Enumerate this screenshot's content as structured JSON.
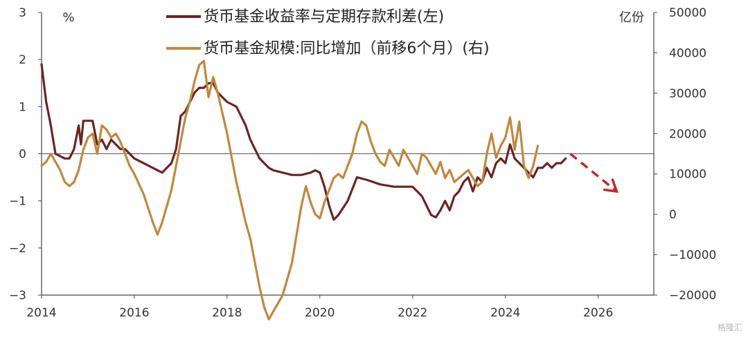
{
  "chart_data": {
    "type": "line",
    "left_unit": "%",
    "right_unit": "亿份",
    "left_axis": {
      "ylim": [
        -3,
        3
      ],
      "ticks": [
        "3",
        "2",
        "1",
        "0",
        "−1",
        "−2",
        "−3"
      ]
    },
    "right_axis": {
      "ylim": [
        -20000,
        50000
      ],
      "ticks": [
        "50000",
        "40000",
        "30000",
        "20000",
        "10000",
        "0",
        "−10000",
        "−20000"
      ]
    },
    "x_axis": {
      "range": [
        2014,
        2027.2
      ],
      "ticks": [
        "2014",
        "2016",
        "2018",
        "2020",
        "2022",
        "2024",
        "2026"
      ]
    },
    "legend": {
      "position": "top-center"
    },
    "series": [
      {
        "name": "货币基金收益率与定期存款利差(左)",
        "axis": "left",
        "color": "#6b2424",
        "x": [
          2014.0,
          2014.1,
          2014.2,
          2014.3,
          2014.4,
          2014.5,
          2014.6,
          2014.7,
          2014.8,
          2014.85,
          2014.9,
          2015.0,
          2015.1,
          2015.2,
          2015.3,
          2015.4,
          2015.5,
          2015.6,
          2015.7,
          2015.8,
          2015.9,
          2016.0,
          2016.2,
          2016.4,
          2016.6,
          2016.8,
          2016.9,
          2017.0,
          2017.1,
          2017.2,
          2017.3,
          2017.4,
          2017.5,
          2017.6,
          2017.7,
          2017.8,
          2017.9,
          2018.0,
          2018.2,
          2018.4,
          2018.5,
          2018.6,
          2018.7,
          2018.8,
          2018.9,
          2019.0,
          2019.2,
          2019.4,
          2019.6,
          2019.8,
          2019.9,
          2020.0,
          2020.1,
          2020.2,
          2020.3,
          2020.4,
          2020.6,
          2020.8,
          2021.0,
          2021.3,
          2021.6,
          2021.9,
          2022.0,
          2022.2,
          2022.3,
          2022.4,
          2022.5,
          2022.6,
          2022.7,
          2022.8,
          2022.9,
          2023.0,
          2023.1,
          2023.2,
          2023.3,
          2023.4,
          2023.5,
          2023.6,
          2023.7,
          2023.8,
          2023.9,
          2024.0,
          2024.1,
          2024.2,
          2024.3,
          2024.4,
          2024.5,
          2024.6,
          2024.7,
          2024.8,
          2024.9,
          2025.0,
          2025.1,
          2025.2,
          2025.3
        ],
        "y": [
          1.9,
          1.1,
          0.6,
          0.0,
          -0.05,
          -0.1,
          -0.1,
          0.1,
          0.6,
          0.2,
          0.7,
          0.7,
          0.7,
          0.2,
          0.3,
          0.1,
          0.3,
          0.2,
          0.1,
          0.1,
          0.0,
          -0.1,
          -0.2,
          -0.3,
          -0.4,
          -0.2,
          0.1,
          0.8,
          0.9,
          1.1,
          1.3,
          1.4,
          1.4,
          1.5,
          1.5,
          1.3,
          1.2,
          1.1,
          1.0,
          0.6,
          0.3,
          0.1,
          -0.1,
          -0.2,
          -0.3,
          -0.35,
          -0.4,
          -0.45,
          -0.45,
          -0.4,
          -0.35,
          -0.4,
          -0.7,
          -1.1,
          -1.4,
          -1.3,
          -1.0,
          -0.5,
          -0.55,
          -0.65,
          -0.7,
          -0.7,
          -0.7,
          -0.9,
          -1.1,
          -1.3,
          -1.35,
          -1.2,
          -1.0,
          -1.2,
          -0.9,
          -0.8,
          -0.6,
          -0.5,
          -0.8,
          -0.5,
          -0.6,
          -0.3,
          -0.5,
          -0.2,
          -0.1,
          -0.2,
          0.2,
          -0.1,
          -0.2,
          -0.3,
          -0.4,
          -0.5,
          -0.3,
          -0.3,
          -0.2,
          -0.3,
          -0.2,
          -0.2,
          -0.1
        ]
      },
      {
        "name": "货币基金规模:同比增加（前移6个月）(右)",
        "axis": "right",
        "color": "#c0883c",
        "x": [
          2014.0,
          2014.1,
          2014.2,
          2014.3,
          2014.4,
          2014.5,
          2014.6,
          2014.7,
          2014.8,
          2014.9,
          2015.0,
          2015.1,
          2015.2,
          2015.3,
          2015.4,
          2015.5,
          2015.6,
          2015.7,
          2015.8,
          2015.9,
          2016.0,
          2016.2,
          2016.4,
          2016.5,
          2016.6,
          2016.7,
          2016.8,
          2016.9,
          2017.0,
          2017.1,
          2017.2,
          2017.3,
          2017.4,
          2017.5,
          2017.6,
          2017.7,
          2017.8,
          2017.9,
          2018.0,
          2018.1,
          2018.2,
          2018.3,
          2018.4,
          2018.5,
          2018.6,
          2018.7,
          2018.8,
          2018.9,
          2019.0,
          2019.1,
          2019.2,
          2019.3,
          2019.4,
          2019.5,
          2019.6,
          2019.7,
          2019.8,
          2019.9,
          2020.0,
          2020.1,
          2020.2,
          2020.3,
          2020.4,
          2020.5,
          2020.6,
          2020.7,
          2020.8,
          2020.9,
          2021.0,
          2021.1,
          2021.2,
          2021.3,
          2021.4,
          2021.5,
          2021.6,
          2021.7,
          2021.8,
          2021.9,
          2022.0,
          2022.1,
          2022.2,
          2022.3,
          2022.4,
          2022.5,
          2022.6,
          2022.7,
          2022.8,
          2022.9,
          2023.0,
          2023.1,
          2023.2,
          2023.3,
          2023.4,
          2023.5,
          2023.6,
          2023.7,
          2023.8,
          2023.9,
          2024.0,
          2024.1,
          2024.2,
          2024.3,
          2024.4,
          2024.5,
          2024.6,
          2024.7
        ],
        "y": [
          12000,
          13000,
          15000,
          13000,
          11000,
          8000,
          7000,
          8000,
          11000,
          16000,
          19000,
          20000,
          15000,
          22000,
          21000,
          19000,
          20000,
          18000,
          15000,
          12000,
          10000,
          5000,
          -2000,
          -5000,
          -2000,
          2000,
          6000,
          12000,
          18000,
          24000,
          28000,
          33000,
          37000,
          38000,
          29000,
          34000,
          30000,
          25000,
          20000,
          14000,
          8000,
          3000,
          -2000,
          -6000,
          -12000,
          -18000,
          -23000,
          -26000,
          -24000,
          -22000,
          -20000,
          -16000,
          -12000,
          -5000,
          2000,
          7000,
          3000,
          0,
          -1000,
          3000,
          6000,
          9000,
          10000,
          9000,
          12000,
          15000,
          20000,
          23000,
          22000,
          18000,
          15000,
          13000,
          12000,
          16000,
          14000,
          12000,
          16000,
          14000,
          12000,
          10000,
          15000,
          14000,
          12000,
          10000,
          13000,
          9000,
          11000,
          8000,
          9000,
          10000,
          11000,
          9000,
          7000,
          8000,
          15000,
          20000,
          14000,
          17000,
          19000,
          24000,
          16000,
          23000,
          12000,
          9000,
          12000,
          17000
        ]
      }
    ],
    "forecast_arrow": {
      "color": "#c0282d",
      "from": [
        2025.4,
        0.0
      ],
      "to": [
        2026.4,
        -0.8
      ]
    }
  },
  "watermark": "格隆汇"
}
